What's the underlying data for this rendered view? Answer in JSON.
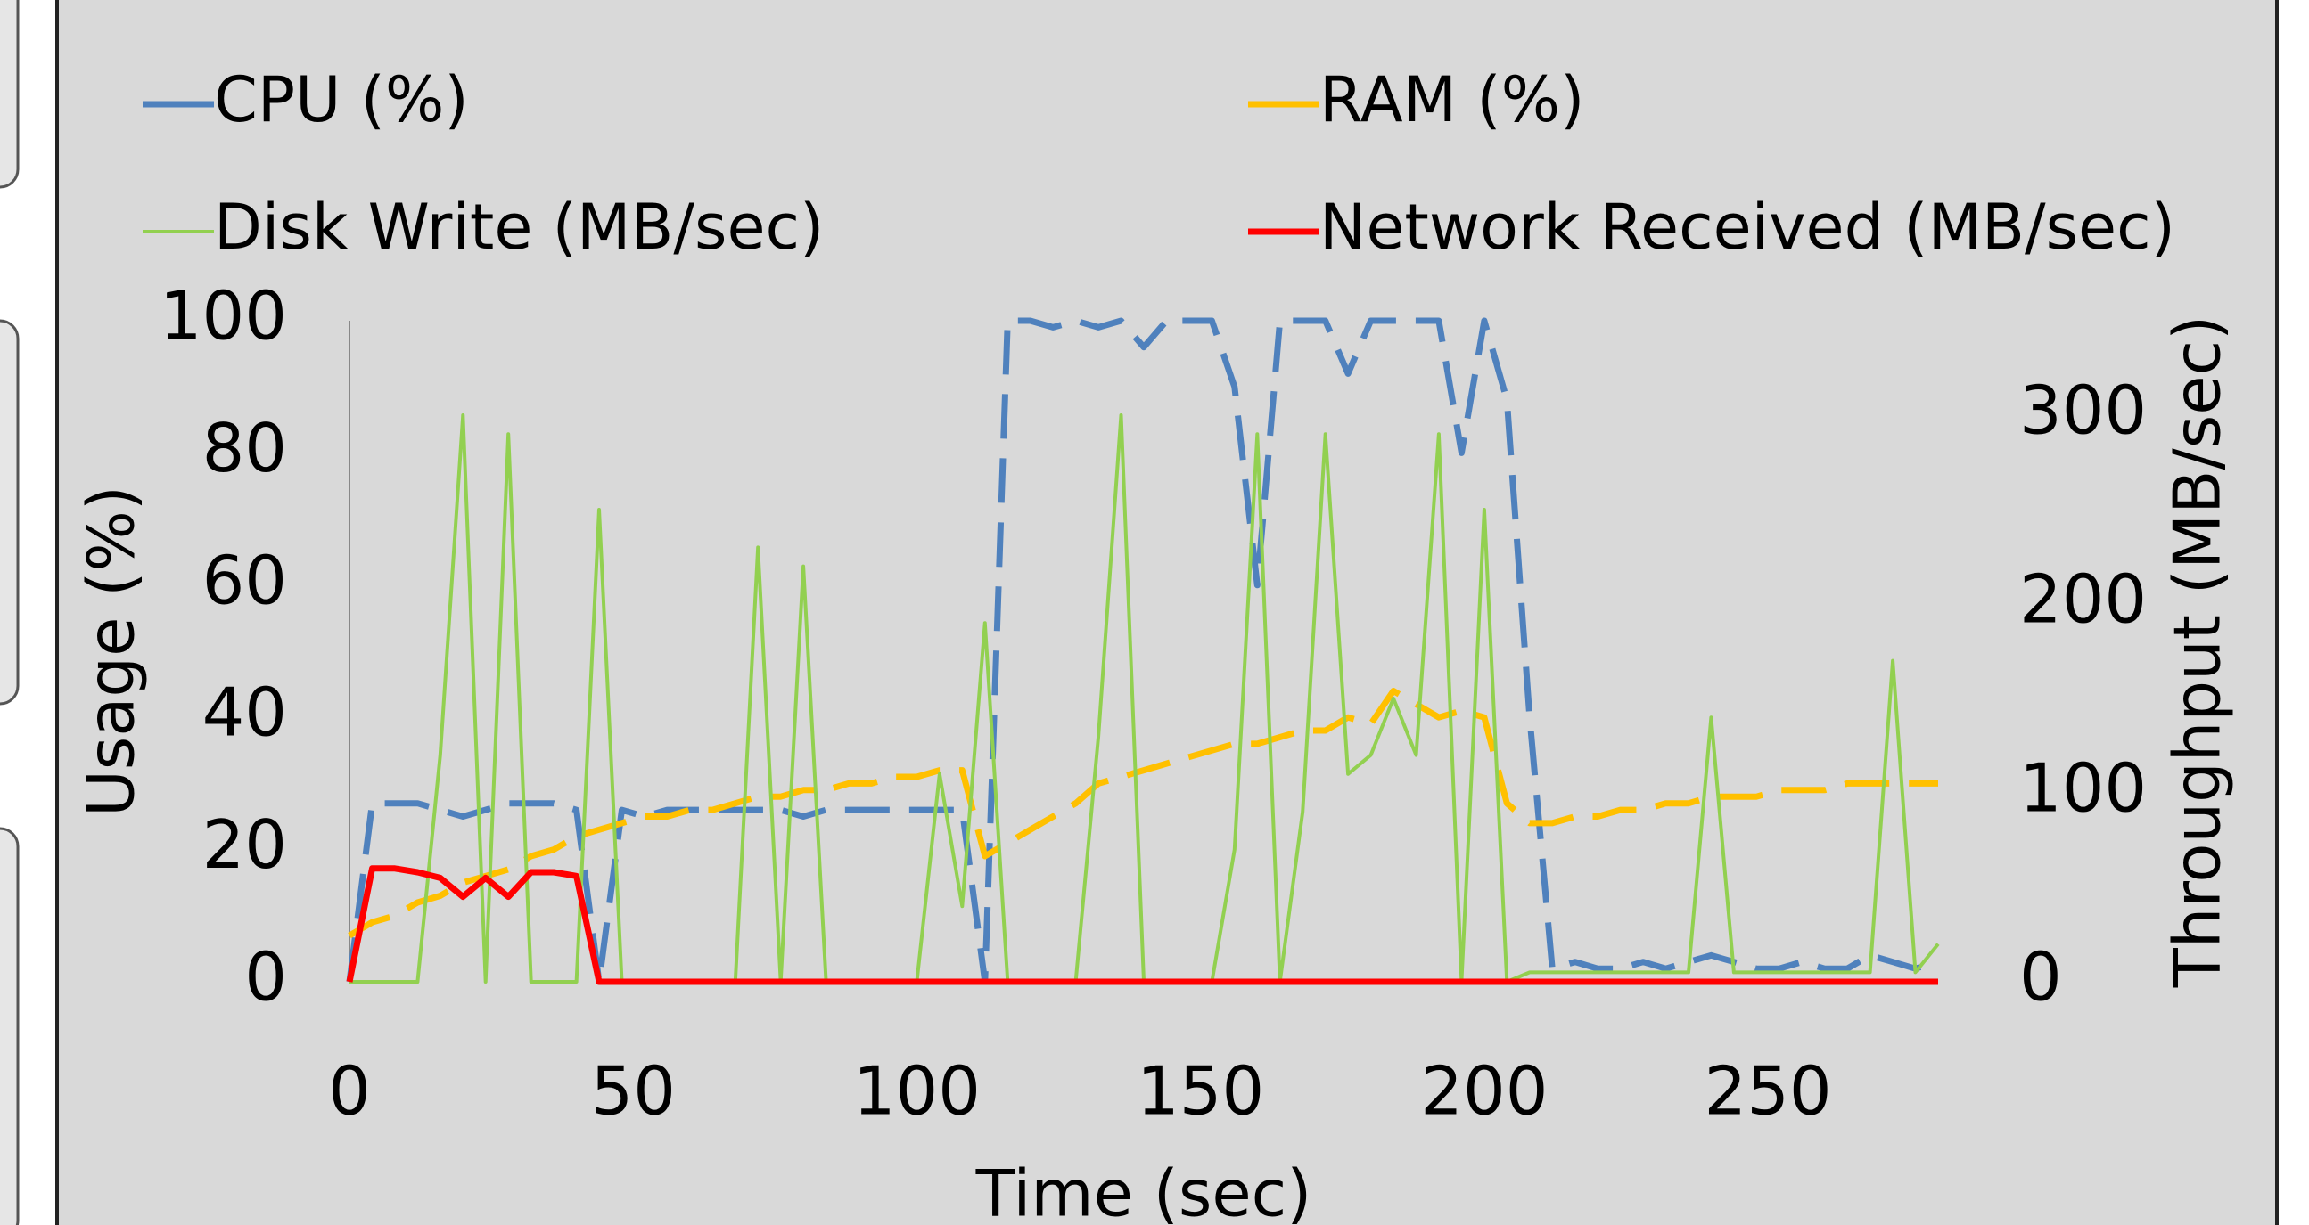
{
  "chart_data": {
    "type": "line",
    "x_label": "Time (sec)",
    "y_label": "Usage (%)",
    "y2_label": "Throughput (MB/sec)",
    "x": [
      0,
      4,
      8,
      12,
      16,
      20,
      24,
      28,
      32,
      36,
      40,
      44,
      48,
      52,
      56,
      60,
      64,
      68,
      72,
      76,
      80,
      84,
      88,
      92,
      96,
      100,
      104,
      108,
      112,
      116,
      120,
      124,
      128,
      132,
      136,
      140,
      144,
      148,
      152,
      156,
      160,
      164,
      168,
      172,
      176,
      180,
      184,
      188,
      192,
      196,
      200,
      204,
      208,
      212,
      216,
      220,
      224,
      228,
      232,
      236,
      240,
      244,
      248,
      252,
      256,
      260,
      264,
      268,
      272,
      276,
      280
    ],
    "xlim": [
      0,
      280
    ],
    "xticks": [
      0,
      50,
      100,
      150,
      200,
      250
    ],
    "ylim": [
      0,
      100
    ],
    "yticks": [
      0,
      20,
      40,
      60,
      80,
      100
    ],
    "y2lim": [
      0,
      350
    ],
    "y2ticks": [
      0,
      100,
      200,
      300
    ],
    "series": [
      {
        "name": "CPU (%)",
        "color": "#4f81bd",
        "dashed": true,
        "values": [
          0,
          27,
          27,
          27,
          26,
          25,
          26,
          27,
          27,
          27,
          26,
          0,
          26,
          25,
          26,
          26,
          26,
          26,
          26,
          26,
          25,
          26,
          26,
          26,
          26,
          26,
          26,
          26,
          0,
          100,
          100,
          99,
          100,
          99,
          100,
          96,
          100,
          100,
          100,
          90,
          60,
          100,
          100,
          100,
          92,
          100,
          100,
          100,
          100,
          80,
          100,
          88,
          40,
          2,
          3,
          2,
          2,
          3,
          2,
          3,
          4,
          3,
          2,
          2,
          3,
          2,
          2,
          4,
          3,
          2,
          3
        ]
      },
      {
        "name": "RAM (%)",
        "color": "#ffc000",
        "dashed": true,
        "values": [
          7,
          9,
          10,
          12,
          13,
          15,
          16,
          17,
          19,
          20,
          22,
          23,
          24,
          25,
          25,
          26,
          26,
          27,
          28,
          28,
          29,
          29,
          30,
          30,
          31,
          31,
          32,
          32,
          19,
          21,
          23,
          25,
          27,
          30,
          31,
          32,
          33,
          34,
          35,
          36,
          36,
          37,
          38,
          38,
          40,
          39,
          44,
          42,
          40,
          41,
          40,
          27,
          24,
          24,
          25,
          25,
          26,
          26,
          27,
          27,
          28,
          28,
          28,
          29,
          29,
          29,
          30,
          30,
          30,
          30,
          30
        ]
      },
      {
        "name": "Disk Write (MB/sec)",
        "color": "#92d050",
        "axis": "y2",
        "values": [
          0,
          0,
          0,
          0,
          120,
          300,
          0,
          290,
          0,
          0,
          0,
          250,
          0,
          0,
          0,
          0,
          0,
          0,
          230,
          0,
          220,
          0,
          0,
          0,
          0,
          0,
          110,
          40,
          190,
          0,
          0,
          0,
          0,
          130,
          300,
          0,
          0,
          0,
          0,
          70,
          290,
          0,
          90,
          290,
          110,
          120,
          150,
          120,
          290,
          0,
          250,
          0,
          5,
          5,
          5,
          5,
          5,
          5,
          5,
          5,
          140,
          5,
          5,
          5,
          5,
          5,
          5,
          5,
          170,
          5,
          20
        ]
      },
      {
        "name": "Network Received (MB/sec)",
        "color": "#ff0000",
        "axis": "y2",
        "values": [
          0,
          60,
          60,
          58,
          55,
          45,
          55,
          45,
          58,
          58,
          56,
          0,
          0,
          0,
          0,
          0,
          0,
          0,
          0,
          0,
          0,
          0,
          0,
          0,
          0,
          0,
          0,
          0,
          0,
          0,
          0,
          0,
          0,
          0,
          0,
          0,
          0,
          0,
          0,
          0,
          0,
          0,
          0,
          0,
          0,
          0,
          0,
          0,
          0,
          0,
          0,
          0,
          0,
          0,
          0,
          0,
          0,
          0,
          0,
          0,
          0,
          0,
          0,
          0,
          0,
          0,
          0,
          0,
          0,
          0,
          0
        ]
      }
    ]
  }
}
